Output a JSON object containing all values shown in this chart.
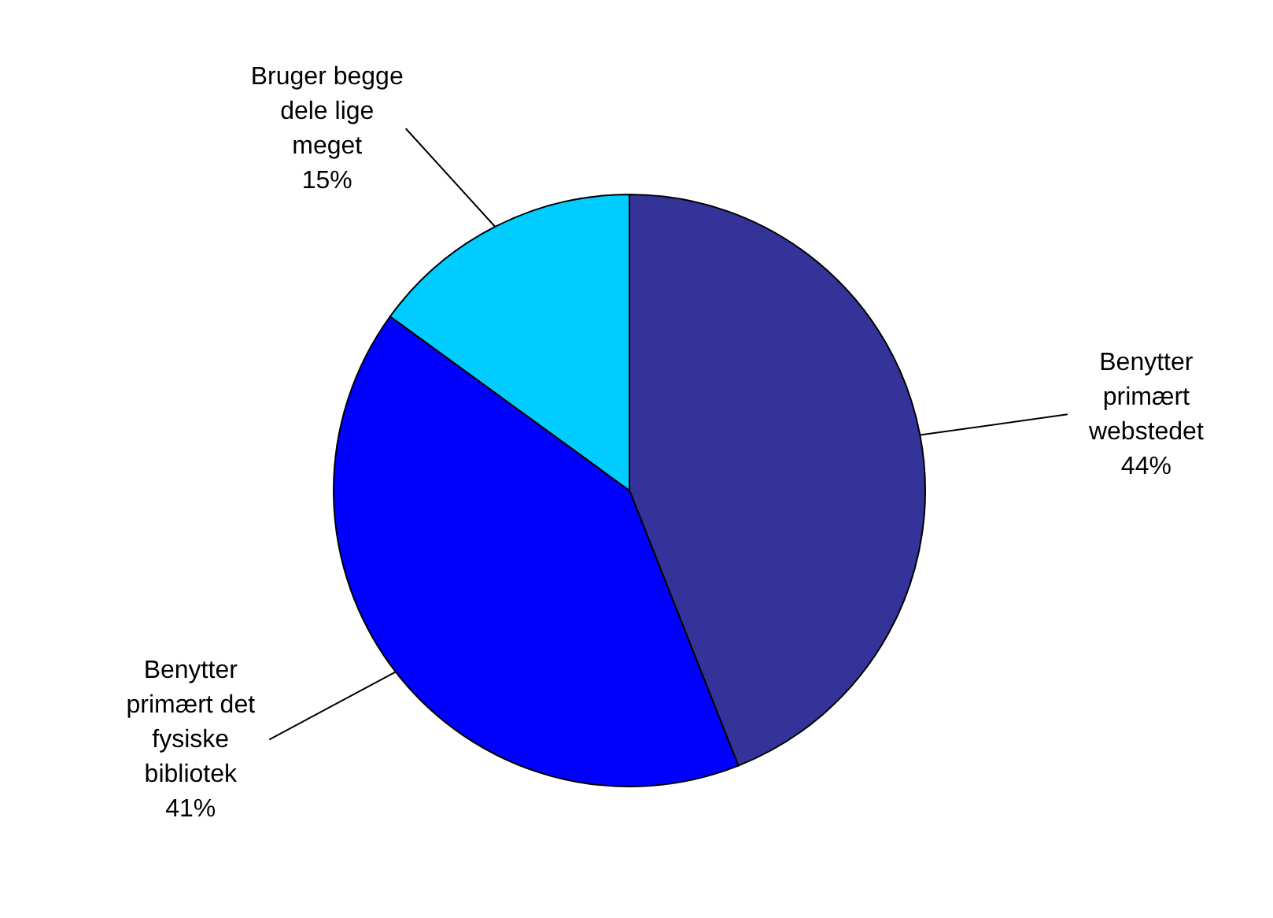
{
  "chart_data": {
    "type": "pie",
    "categories": [
      "Benytter primært webstedet",
      "Benytter primært det fysiske bibliotek",
      "Bruger begge dele lige meget"
    ],
    "values": [
      44,
      41,
      15
    ],
    "colors": [
      "#333399",
      "#0000ff",
      "#00ccff"
    ],
    "value_labels": [
      "44%",
      "41%",
      "15%"
    ]
  }
}
